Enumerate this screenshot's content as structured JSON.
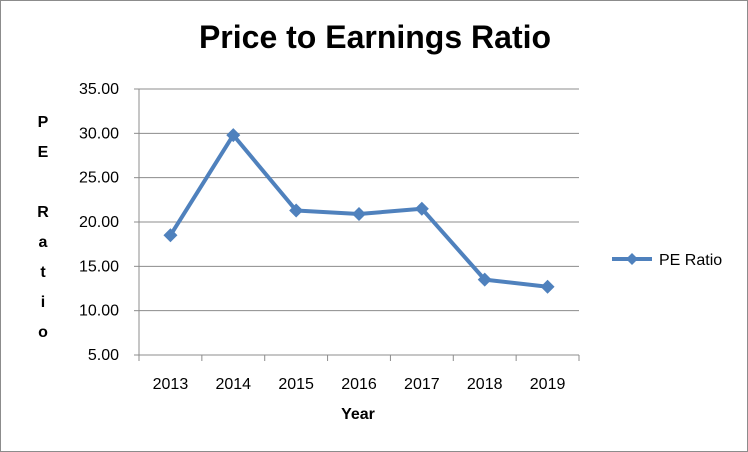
{
  "chart_data": {
    "type": "line",
    "title": "Price to Earnings Ratio",
    "xlabel": "Year",
    "ylabel": "PE Ratio",
    "categories": [
      "2013",
      "2014",
      "2015",
      "2016",
      "2017",
      "2018",
      "2019"
    ],
    "series": [
      {
        "name": "PE Ratio",
        "values": [
          18.5,
          29.8,
          21.3,
          20.9,
          21.5,
          13.5,
          12.7
        ],
        "color": "#4F81BD",
        "marker": "diamond"
      }
    ],
    "ylim": [
      5,
      35
    ],
    "y_ticks": [
      "35.00",
      "30.00",
      "25.00",
      "20.00",
      "15.00",
      "10.00",
      "5.00"
    ],
    "grid": "horizontal",
    "legend_position": "right"
  }
}
